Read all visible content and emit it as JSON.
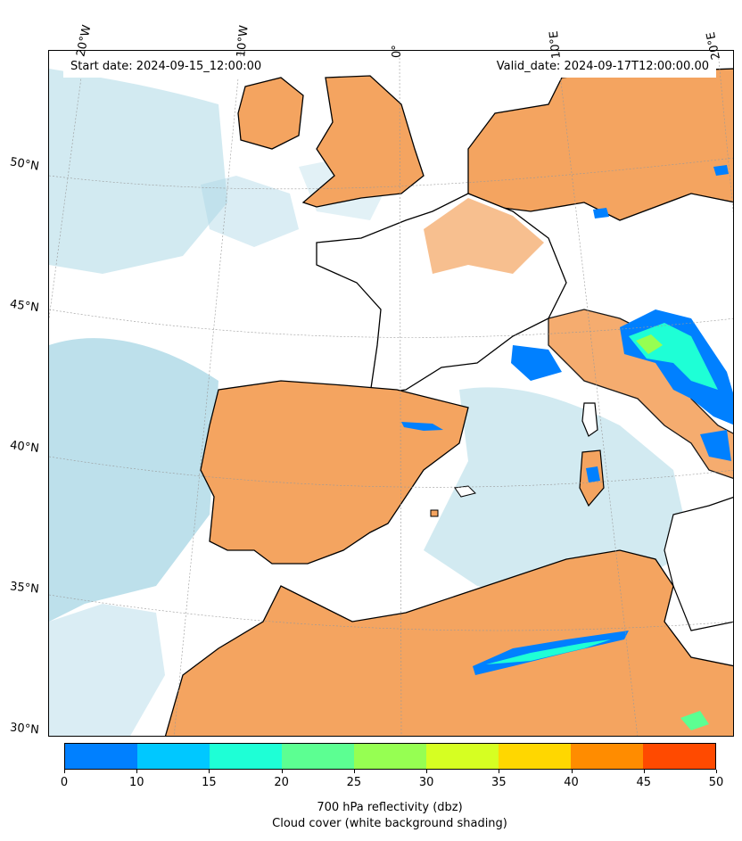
{
  "header": {
    "start_date": "Start date: 2024-09-15_12:00:00",
    "valid_date": "Valid_date: 2024-09-17T12:00:00.00"
  },
  "axes": {
    "lon_labels": [
      "20°W",
      "10°W",
      "0°",
      "10°E",
      "20°E"
    ],
    "lat_labels": [
      "50°N",
      "45°N",
      "40°N",
      "35°N",
      "30°N"
    ]
  },
  "colorbar": {
    "ticks": [
      "0",
      "10",
      "15",
      "20",
      "25",
      "30",
      "35",
      "40",
      "45",
      "50"
    ],
    "colors": [
      "#0080ff",
      "#00c8ff",
      "#1effd6",
      "#5cff92",
      "#96ff52",
      "#d6ff22",
      "#ffd700",
      "#ff8c00",
      "#ff4a00"
    ],
    "label": "700 hPa reflectivity (dbz)",
    "sublabel": "Cloud cover (white background shading)"
  },
  "palette": {
    "land": "#f4a460",
    "sea_cloud": "#add8e6",
    "coast": "#000000"
  }
}
